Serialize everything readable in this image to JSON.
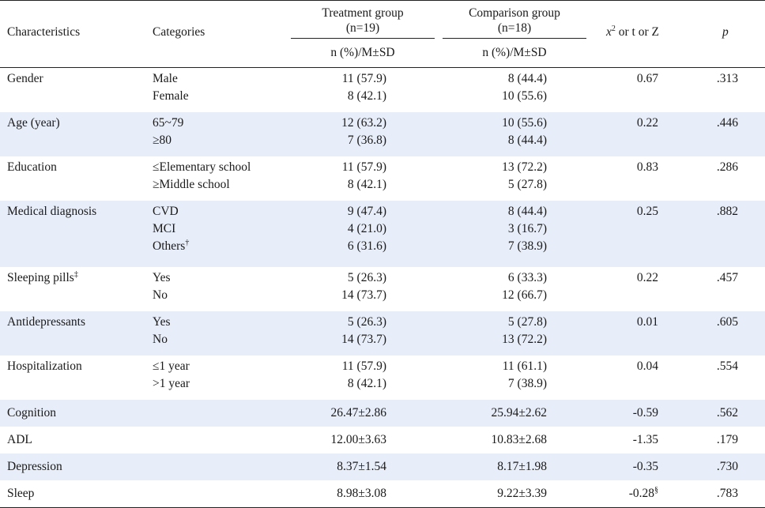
{
  "header": {
    "characteristics": "Characteristics",
    "categories": "Categories",
    "treatment_line1": "Treatment group",
    "treatment_line2": "(n=19)",
    "comparison_line1": "Comparison group",
    "comparison_line2": "(n=18)",
    "stat_x": "x",
    "stat_sup": "2",
    "stat_rest": " or t or Z",
    "p": "p",
    "subheader_treatment": "n (%)/M±SD",
    "subheader_comparison": "n (%)/M±SD"
  },
  "rows": [
    {
      "characteristic": "Gender",
      "characteristic_sup": "",
      "categories": [
        {
          "label": "Male",
          "sup": ""
        },
        {
          "label": "Female",
          "sup": ""
        }
      ],
      "treatment": [
        "11 (57.9)",
        "8 (42.1)"
      ],
      "comparison": [
        "8 (44.4)",
        "10 (55.6)"
      ],
      "stat": "0.67",
      "stat_sup": "",
      "p": ".313",
      "shaded": false
    },
    {
      "characteristic": "Age (year)",
      "characteristic_sup": "",
      "categories": [
        {
          "label": "65~79",
          "sup": ""
        },
        {
          "label": "≥80",
          "sup": ""
        }
      ],
      "treatment": [
        "12 (63.2)",
        "7 (36.8)"
      ],
      "comparison": [
        "10 (55.6)",
        "8 (44.4)"
      ],
      "stat": "0.22",
      "stat_sup": "",
      "p": ".446",
      "shaded": true
    },
    {
      "characteristic": "Education",
      "characteristic_sup": "",
      "categories": [
        {
          "label": "≤Elementary school",
          "sup": ""
        },
        {
          "label": "≥Middle school",
          "sup": ""
        }
      ],
      "treatment": [
        "11 (57.9)",
        "8 (42.1)"
      ],
      "comparison": [
        "13 (72.2)",
        "5 (27.8)"
      ],
      "stat": "0.83",
      "stat_sup": "",
      "p": ".286",
      "shaded": false
    },
    {
      "characteristic": "Medical diagnosis",
      "characteristic_sup": "",
      "categories": [
        {
          "label": "CVD",
          "sup": ""
        },
        {
          "label": "MCI",
          "sup": ""
        },
        {
          "label": "Others",
          "sup": "†"
        }
      ],
      "treatment": [
        "9 (47.4)",
        "4 (21.0)",
        "6 (31.6)"
      ],
      "comparison": [
        "8 (44.4)",
        "3 (16.7)",
        "7 (38.9)"
      ],
      "stat": "0.25",
      "stat_sup": "",
      "p": ".882",
      "shaded": true
    },
    {
      "characteristic": "Sleeping pills",
      "characteristic_sup": "‡",
      "categories": [
        {
          "label": "Yes",
          "sup": ""
        },
        {
          "label": "No",
          "sup": ""
        }
      ],
      "treatment": [
        "5 (26.3)",
        "14 (73.7)"
      ],
      "comparison": [
        "6 (33.3)",
        "12 (66.7)"
      ],
      "stat": "0.22",
      "stat_sup": "",
      "p": ".457",
      "shaded": false
    },
    {
      "characteristic": "Antidepressants",
      "characteristic_sup": "",
      "categories": [
        {
          "label": "Yes",
          "sup": ""
        },
        {
          "label": "No",
          "sup": ""
        }
      ],
      "treatment": [
        "5 (26.3)",
        "14 (73.7)"
      ],
      "comparison": [
        "5 (27.8)",
        "13 (72.2)"
      ],
      "stat": "0.01",
      "stat_sup": "",
      "p": ".605",
      "shaded": true
    },
    {
      "characteristic": "Hospitalization",
      "characteristic_sup": "",
      "categories": [
        {
          "label": "≤1 year",
          "sup": ""
        },
        {
          "label": ">1 year",
          "sup": ""
        }
      ],
      "treatment": [
        "11 (57.9)",
        "8 (42.1)"
      ],
      "comparison": [
        "11 (61.1)",
        "7 (38.9)"
      ],
      "stat": "0.04",
      "stat_sup": "",
      "p": ".554",
      "shaded": false
    },
    {
      "characteristic": "Cognition",
      "characteristic_sup": "",
      "categories": [],
      "treatment": [
        "26.47±2.86"
      ],
      "comparison": [
        "25.94±2.62"
      ],
      "stat": "-0.59",
      "stat_sup": "",
      "p": ".562",
      "shaded": true
    },
    {
      "characteristic": "ADL",
      "characteristic_sup": "",
      "categories": [],
      "treatment": [
        "12.00±3.63"
      ],
      "comparison": [
        "10.83±2.68"
      ],
      "stat": "-1.35",
      "stat_sup": "",
      "p": ".179",
      "shaded": false
    },
    {
      "characteristic": "Depression",
      "characteristic_sup": "",
      "categories": [],
      "treatment": [
        "8.37±1.54"
      ],
      "comparison": [
        "8.17±1.98"
      ],
      "stat": "-0.35",
      "stat_sup": "",
      "p": ".730",
      "shaded": true
    },
    {
      "characteristic": "Sleep",
      "characteristic_sup": "",
      "categories": [],
      "treatment": [
        "8.98±3.08"
      ],
      "comparison": [
        "9.22±3.39"
      ],
      "stat": "-0.28",
      "stat_sup": "§",
      "p": ".783",
      "shaded": false
    }
  ]
}
